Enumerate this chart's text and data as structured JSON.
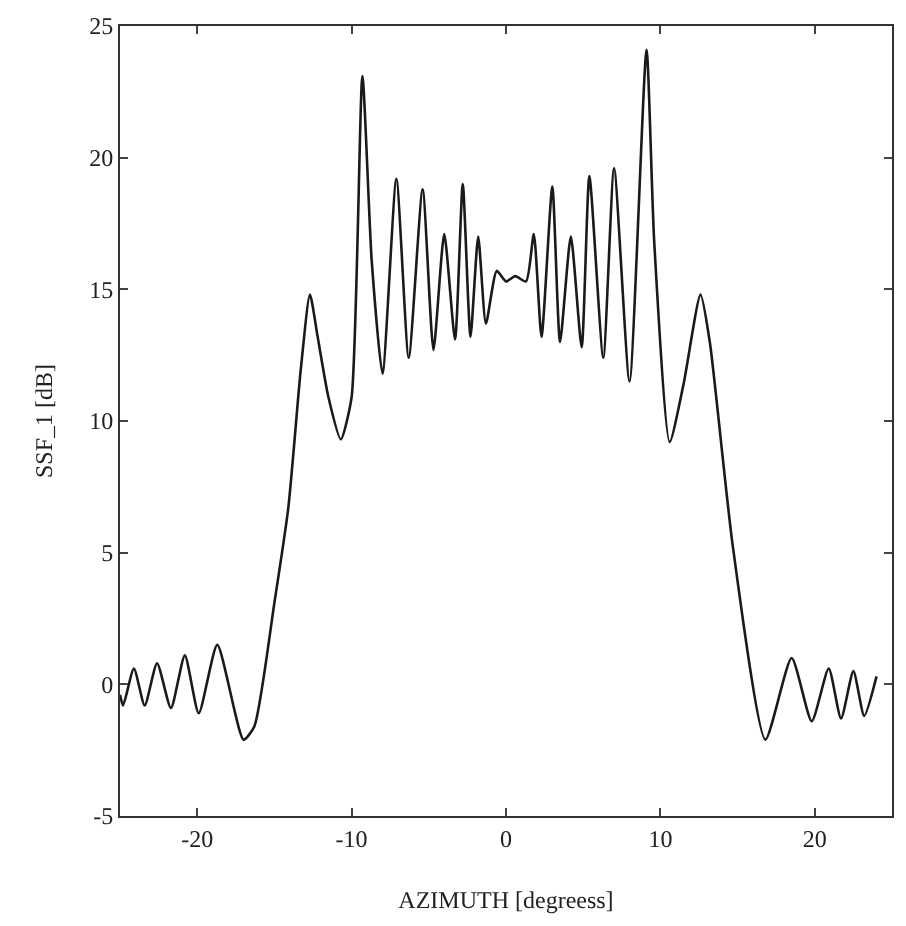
{
  "chart_data": {
    "type": "line",
    "xlabel": "AZIMUTH [degreess]",
    "ylabel": "SSF_1 [dB]",
    "xlim": [
      -25,
      25
    ],
    "ylim": [
      -5,
      25
    ],
    "xticks": [
      -20,
      -10,
      0,
      10,
      20
    ],
    "yticks": [
      -5,
      0,
      5,
      10,
      15,
      20,
      25
    ],
    "grid": false,
    "marker": "none",
    "line_style": "solid",
    "series": [
      {
        "color": "#1a1a1a",
        "x": [
          -25,
          -24.8,
          -24.1,
          -23.4,
          -22.6,
          -21.7,
          -20.8,
          -19.9,
          -18.7,
          -17.0,
          -16.3,
          -15.0,
          -14.1,
          -13.3,
          -12.7,
          -12.2,
          -11.5,
          -10.7,
          -10.0,
          -9.3,
          -8.7,
          -8.0,
          -7.1,
          -6.3,
          -5.4,
          -4.7,
          -4.0,
          -3.3,
          -2.8,
          -2.3,
          -1.8,
          -1.3,
          -0.6,
          0,
          0.6,
          1.3,
          1.8,
          2.3,
          3.0,
          3.5,
          4.2,
          4.9,
          5.4,
          6.3,
          7.0,
          8.0,
          9.1,
          9.6,
          10.6,
          11.5,
          12.6,
          13.2,
          14.7,
          16.8,
          18.5,
          19.8,
          20.9,
          21.7,
          22.5,
          23.2,
          24.0
        ],
        "values": [
          -0.4,
          -0.8,
          0.6,
          -0.8,
          0.8,
          -0.9,
          1.1,
          -1.1,
          1.5,
          -2.1,
          -1.6,
          3.1,
          6.7,
          11.9,
          14.8,
          13.2,
          10.9,
          9.3,
          10.9,
          23.1,
          16.1,
          11.8,
          19.2,
          12.4,
          18.8,
          12.7,
          17.1,
          13.1,
          19.0,
          13.2,
          17.0,
          13.7,
          15.7,
          15.3,
          15.5,
          15.3,
          17.1,
          13.2,
          18.9,
          13.0,
          17.0,
          12.8,
          19.3,
          12.4,
          19.6,
          11.5,
          24.1,
          16.8,
          9.2,
          11.4,
          14.8,
          13.0,
          5.2,
          -2.1,
          1.0,
          -1.4,
          0.6,
          -1.3,
          0.5,
          -1.2,
          0.3
        ]
      }
    ]
  }
}
